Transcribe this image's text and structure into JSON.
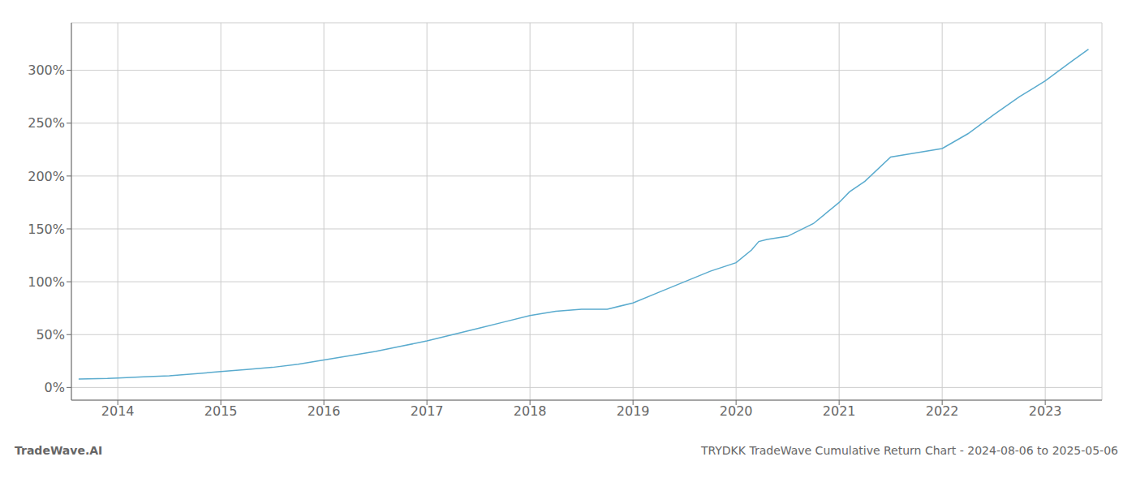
{
  "chart_data": {
    "type": "line",
    "title": "TRYDKK TradeWave Cumulative Return Chart - 2024-08-06 to 2025-05-06",
    "annotations": [
      "TradeWave.AI"
    ],
    "x": [
      2013.62,
      2013.9,
      2014.0,
      2014.25,
      2014.5,
      2014.75,
      2015.0,
      2015.25,
      2015.5,
      2015.75,
      2016.0,
      2016.25,
      2016.5,
      2016.75,
      2017.0,
      2017.25,
      2017.5,
      2017.75,
      2018.0,
      2018.25,
      2018.5,
      2018.65,
      2018.75,
      2019.0,
      2019.25,
      2019.5,
      2019.75,
      2020.0,
      2020.15,
      2020.22,
      2020.3,
      2020.5,
      2020.75,
      2021.0,
      2021.1,
      2021.25,
      2021.5,
      2021.75,
      2022.0,
      2022.25,
      2022.5,
      2022.75,
      2023.0,
      2023.25,
      2023.42
    ],
    "values": [
      8,
      8.5,
      9,
      10,
      11,
      13,
      15,
      17,
      19,
      22,
      26,
      30,
      34,
      39,
      44,
      50,
      56,
      62,
      68,
      72,
      74,
      74,
      74,
      80,
      90,
      100,
      110,
      118,
      130,
      138,
      140,
      143,
      155,
      175,
      185,
      195,
      218,
      222,
      226,
      240,
      258,
      275,
      290,
      308,
      320
    ],
    "color": "#5aabce",
    "xlim": [
      2013.55,
      2023.55
    ],
    "ylim": [
      -12,
      345
    ],
    "xticks": [
      2014,
      2015,
      2016,
      2017,
      2018,
      2019,
      2020,
      2021,
      2022,
      2023
    ],
    "yticks": [
      {
        "value": 0,
        "label": "0%"
      },
      {
        "value": 50,
        "label": "50%"
      },
      {
        "value": 100,
        "label": "100%"
      },
      {
        "value": 150,
        "label": "150%"
      },
      {
        "value": 200,
        "label": "200%"
      },
      {
        "value": 250,
        "label": "250%"
      },
      {
        "value": 300,
        "label": "300%"
      }
    ],
    "grid": true
  }
}
